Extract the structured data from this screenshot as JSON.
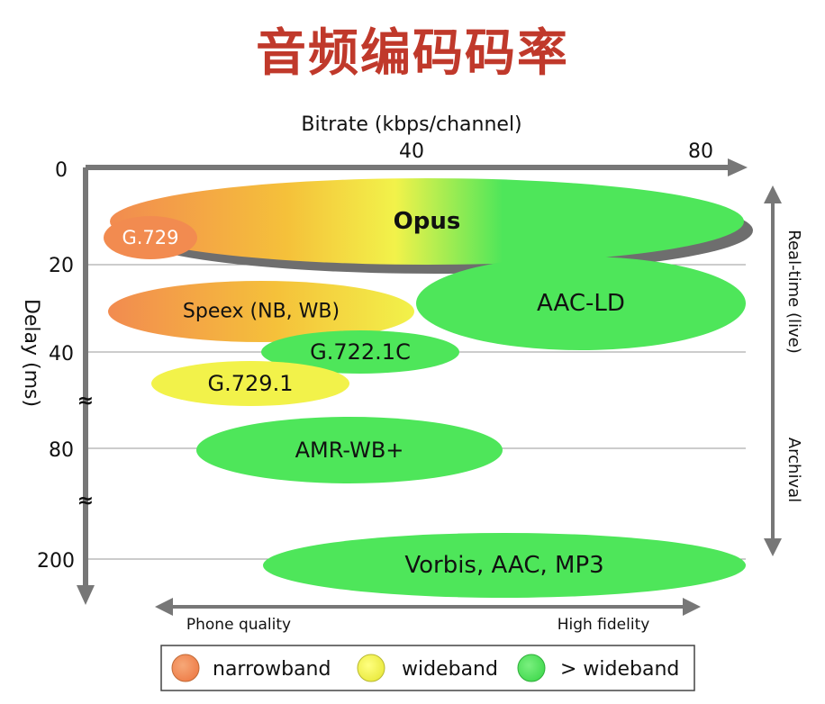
{
  "page": {
    "title": "音频编码码率"
  },
  "chart_data": {
    "type": "bubble-range",
    "xlabel": "Bitrate (kbps/channel)",
    "ylabel": "Delay (ms)",
    "x_ticks": [
      "40",
      "80"
    ],
    "y_ticks": [
      "0",
      "20",
      "40",
      "80",
      "200"
    ],
    "axis_breaks": "y axis broken between 40 and 80, and between 80 and 200",
    "right_labels": {
      "top": "Real-time (live)",
      "bottom": "Archival"
    },
    "quality_labels": {
      "left": "Phone quality",
      "right": "High fidelity"
    },
    "legend": [
      {
        "label": "narrowband",
        "color": "#f28b50"
      },
      {
        "label": "wideband",
        "color": "#f2f24a"
      },
      {
        "label": "> wideband",
        "color": "#4ee65a"
      }
    ],
    "series": [
      {
        "name": "Opus",
        "bitrate_kbps": [
          6,
          80
        ],
        "delay_ms": [
          5,
          20
        ],
        "bands": [
          "narrowband",
          "wideband",
          "> wideband"
        ]
      },
      {
        "name": "G.729",
        "bitrate_kbps": [
          8,
          8
        ],
        "delay_ms": [
          15,
          15
        ],
        "bands": [
          "narrowband"
        ]
      },
      {
        "name": "Speex (NB, WB)",
        "bitrate_kbps": [
          4,
          44
        ],
        "delay_ms": [
          30,
          30
        ],
        "bands": [
          "narrowband",
          "wideband"
        ]
      },
      {
        "name": "AAC-LD",
        "bitrate_kbps": [
          48,
          80
        ],
        "delay_ms": [
          20,
          40
        ],
        "bands": [
          "> wideband"
        ]
      },
      {
        "name": "G.722.1C",
        "bitrate_kbps": [
          24,
          48
        ],
        "delay_ms": [
          40,
          40
        ],
        "bands": [
          "> wideband"
        ]
      },
      {
        "name": "G.729.1",
        "bitrate_kbps": [
          8,
          32
        ],
        "delay_ms": [
          48,
          48
        ],
        "bands": [
          "wideband"
        ]
      },
      {
        "name": "AMR-WB+",
        "bitrate_kbps": [
          14,
          56
        ],
        "delay_ms": [
          80,
          80
        ],
        "bands": [
          "> wideband"
        ]
      },
      {
        "name": "Vorbis, AAC, MP3",
        "bitrate_kbps": [
          24,
          80
        ],
        "delay_ms": [
          200,
          200
        ],
        "bands": [
          "> wideband"
        ]
      }
    ]
  }
}
